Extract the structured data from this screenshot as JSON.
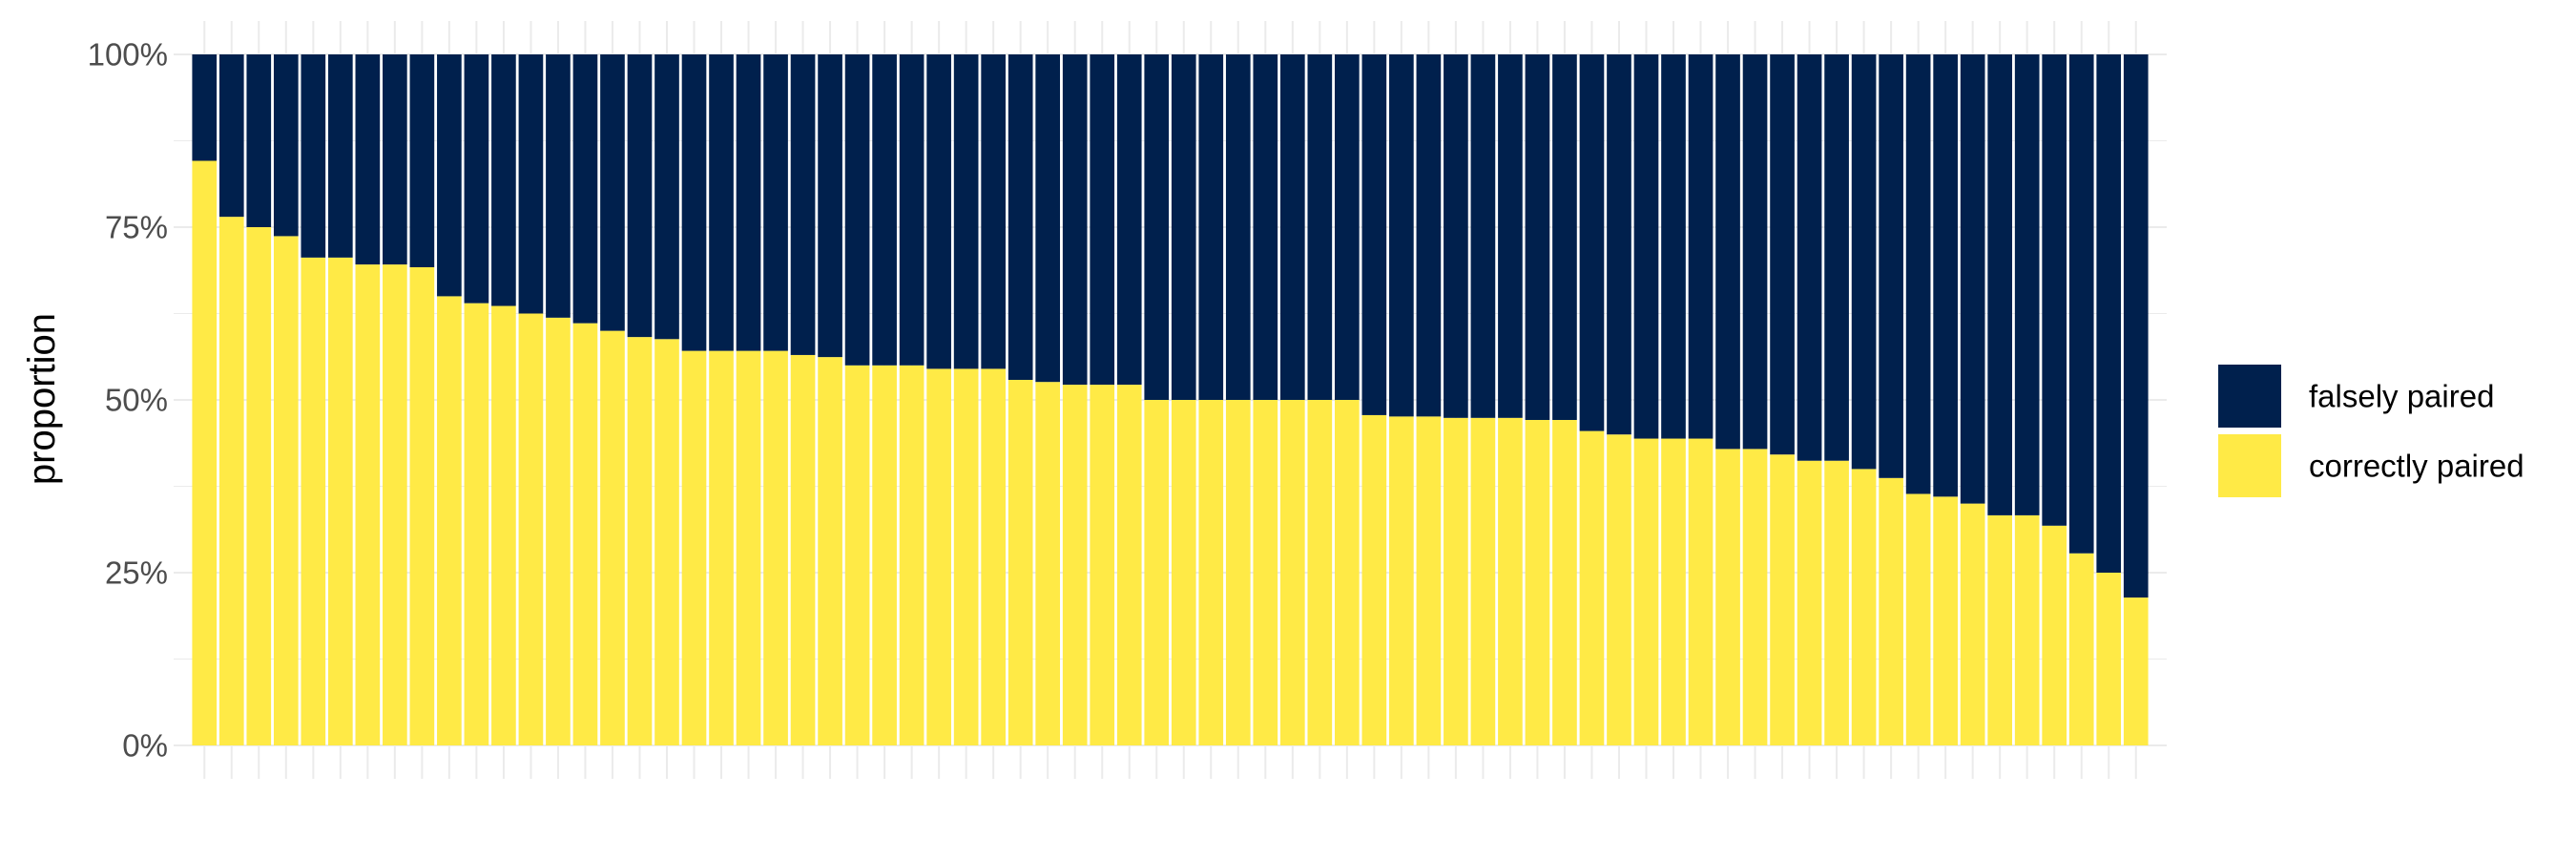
{
  "chart_data": {
    "type": "bar",
    "stacked": true,
    "title": "",
    "xlabel": "",
    "ylabel": "proportion",
    "ylim": [
      0,
      1
    ],
    "y_ticks": [
      "0%",
      "25%",
      "50%",
      "75%",
      "100%"
    ],
    "y_tick_values": [
      0,
      0.25,
      0.5,
      0.75,
      1
    ],
    "grid": true,
    "legend_position": "right",
    "series": [
      {
        "name": "falsely paired",
        "color": "#00204d",
        "values": [
          0.154,
          0.235,
          0.25,
          0.263,
          0.294,
          0.294,
          0.304,
          0.304,
          0.308,
          0.35,
          0.36,
          0.364,
          0.375,
          0.381,
          0.389,
          0.4,
          0.409,
          0.412,
          0.429,
          0.429,
          0.429,
          0.429,
          0.435,
          0.438,
          0.45,
          0.45,
          0.45,
          0.455,
          0.455,
          0.455,
          0.471,
          0.474,
          0.478,
          0.478,
          0.478,
          0.5,
          0.5,
          0.5,
          0.5,
          0.5,
          0.5,
          0.5,
          0.5,
          0.522,
          0.524,
          0.524,
          0.526,
          0.526,
          0.526,
          0.529,
          0.529,
          0.545,
          0.55,
          0.556,
          0.556,
          0.556,
          0.571,
          0.571,
          0.579,
          0.588,
          0.588,
          0.6,
          0.613,
          0.636,
          0.64,
          0.65,
          0.667,
          0.667,
          0.682,
          0.722,
          0.75,
          0.786
        ]
      },
      {
        "name": "correctly paired",
        "color": "#ffea46",
        "values": [
          0.846,
          0.765,
          0.75,
          0.737,
          0.706,
          0.706,
          0.696,
          0.696,
          0.692,
          0.65,
          0.64,
          0.636,
          0.625,
          0.619,
          0.611,
          0.6,
          0.591,
          0.588,
          0.571,
          0.571,
          0.571,
          0.571,
          0.565,
          0.562,
          0.55,
          0.55,
          0.55,
          0.545,
          0.545,
          0.545,
          0.529,
          0.526,
          0.522,
          0.522,
          0.522,
          0.5,
          0.5,
          0.5,
          0.5,
          0.5,
          0.5,
          0.5,
          0.5,
          0.478,
          0.476,
          0.476,
          0.474,
          0.474,
          0.474,
          0.471,
          0.471,
          0.455,
          0.45,
          0.444,
          0.444,
          0.444,
          0.429,
          0.429,
          0.421,
          0.412,
          0.412,
          0.4,
          0.387,
          0.364,
          0.36,
          0.35,
          0.333,
          0.333,
          0.318,
          0.278,
          0.25,
          0.214
        ]
      }
    ]
  }
}
